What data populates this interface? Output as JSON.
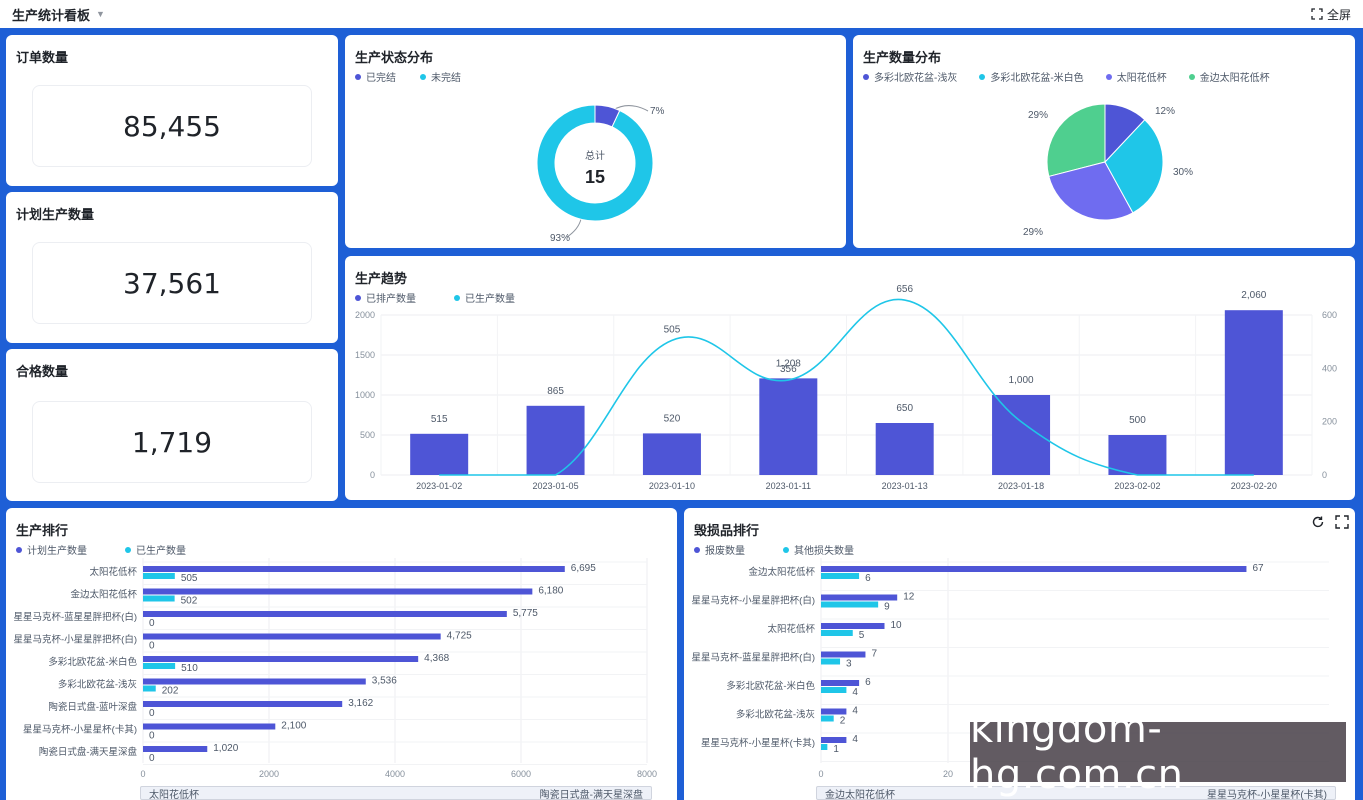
{
  "app": {
    "title": "生产统计看板",
    "fullscreen_label": "全屏"
  },
  "kpis": [
    {
      "title": "订单数量",
      "value": "85,455"
    },
    {
      "title": "计划生产数量",
      "value": "37,561"
    },
    {
      "title": "合格数量",
      "value": "1,719"
    }
  ],
  "status_chart": {
    "title": "生产状态分布",
    "legend": [
      "已完结",
      "未完结"
    ],
    "colors": [
      "#4e55d6",
      "#1fc6e8"
    ],
    "center_label": "总计",
    "center_value": "15",
    "label_done": "7%",
    "label_undone": "93%"
  },
  "qty_chart": {
    "title": "生产数量分布",
    "legend": [
      "多彩北欧花盆-浅灰",
      "多彩北欧花盆-米白色",
      "太阳花低杯",
      "金边太阳花低杯"
    ],
    "colors": [
      "#4e55d6",
      "#1fc6e8",
      "#6f6cf0",
      "#4fcf8f"
    ],
    "labels": [
      "12%",
      "30%",
      "29%",
      "29%"
    ]
  },
  "trend_chart": {
    "title": "生产趋势",
    "legend": [
      "已排产数量",
      "已生产数量"
    ],
    "colors": [
      "#4e55d6",
      "#1fc6e8"
    ],
    "left_ticks": [
      "0",
      "500",
      "1000",
      "1500",
      "2000"
    ],
    "right_ticks": [
      "0",
      "200",
      "400",
      "600"
    ],
    "bar_labels": [
      "515",
      "865",
      "520",
      "1,208",
      "650",
      "1,000",
      "500",
      "2,060"
    ],
    "line_labels": [
      "",
      "",
      "505",
      "356",
      "656",
      "",
      "",
      ""
    ]
  },
  "rank_chart": {
    "title": "生产排行",
    "legend": [
      "计划生产数量",
      "已生产数量"
    ],
    "colors": [
      "#4e55d6",
      "#1fc6e8"
    ],
    "x_ticks": [
      "0",
      "2000",
      "4000",
      "6000",
      "8000"
    ],
    "rows": [
      {
        "label": "太阳花低杯",
        "a": "6,695",
        "b": "505"
      },
      {
        "label": "金边太阳花低杯",
        "a": "6,180",
        "b": "502"
      },
      {
        "label": "星星马克杯-蓝星星胖把杯(白)",
        "a": "5,775",
        "b": "0"
      },
      {
        "label": "星星马克杯-小星星胖把杯(白)",
        "a": "4,725",
        "b": "0"
      },
      {
        "label": "多彩北欧花盆-米白色",
        "a": "4,368",
        "b": "510"
      },
      {
        "label": "多彩北欧花盆-浅灰",
        "a": "3,536",
        "b": "202"
      },
      {
        "label": "陶瓷日式盘-蓝叶深盘",
        "a": "3,162",
        "b": "0"
      },
      {
        "label": "星星马克杯-小星星杯(卡其)",
        "a": "2,100",
        "b": "0"
      },
      {
        "label": "陶瓷日式盘-满天星深盘",
        "a": "1,020",
        "b": "0"
      }
    ],
    "scroll_left": "太阳花低杯",
    "scroll_right": "陶瓷日式盘-满天星深盘"
  },
  "damage_chart": {
    "title": "毁损品排行",
    "legend": [
      "报废数量",
      "其他损失数量"
    ],
    "colors": [
      "#4e55d6",
      "#1fc6e8"
    ],
    "x_ticks": [
      "0",
      "20"
    ],
    "rows": [
      {
        "label": "金边太阳花低杯",
        "a": "67",
        "b": "6"
      },
      {
        "label": "星星马克杯-小星星胖把杯(白)",
        "a": "12",
        "b": "9"
      },
      {
        "label": "太阳花低杯",
        "a": "10",
        "b": "5"
      },
      {
        "label": "星星马克杯-蓝星星胖把杯(白)",
        "a": "7",
        "b": "3"
      },
      {
        "label": "多彩北欧花盆-米白色",
        "a": "6",
        "b": "4"
      },
      {
        "label": "多彩北欧花盆-浅灰",
        "a": "4",
        "b": "2"
      },
      {
        "label": "星星马克杯-小星星杯(卡其)",
        "a": "4",
        "b": "1"
      }
    ],
    "scroll_left": "金边太阳花低杯",
    "scroll_right": "星星马克杯-小星星杯(卡其)"
  },
  "watermark": "kingdom-hg.com.cn",
  "chart_data": [
    {
      "type": "pie",
      "title": "生产状态分布",
      "categories": [
        "已完结",
        "未完结"
      ],
      "values": [
        7,
        93
      ],
      "total": 15
    },
    {
      "type": "pie",
      "title": "生产数量分布",
      "categories": [
        "多彩北欧花盆-浅灰",
        "多彩北欧花盆-米白色",
        "太阳花低杯",
        "金边太阳花低杯"
      ],
      "values": [
        12,
        30,
        29,
        29
      ]
    },
    {
      "type": "bar",
      "title": "生产趋势",
      "categories": [
        "2023-01-02",
        "2023-01-05",
        "2023-01-10",
        "2023-01-11",
        "2023-01-13",
        "2023-01-18",
        "2023-02-02",
        "2023-02-20"
      ],
      "series": [
        {
          "name": "已排产数量",
          "type": "bar",
          "axis": "left",
          "values": [
            515,
            865,
            520,
            1208,
            650,
            1000,
            500,
            2060
          ]
        },
        {
          "name": "已生产数量",
          "type": "line",
          "axis": "right",
          "values": [
            0,
            0,
            505,
            356,
            656,
            200,
            0,
            0
          ]
        }
      ],
      "ylim": [
        0,
        2000
      ],
      "ylim_right": [
        0,
        600
      ]
    },
    {
      "type": "bar",
      "orientation": "horizontal",
      "title": "生产排行",
      "categories": [
        "太阳花低杯",
        "金边太阳花低杯",
        "星星马克杯-蓝星星胖把杯(白)",
        "星星马克杯-小星星胖把杯(白)",
        "多彩北欧花盆-米白色",
        "多彩北欧花盆-浅灰",
        "陶瓷日式盘-蓝叶深盘",
        "星星马克杯-小星星杯(卡其)",
        "陶瓷日式盘-满天星深盘"
      ],
      "series": [
        {
          "name": "计划生产数量",
          "values": [
            6695,
            6180,
            5775,
            4725,
            4368,
            3536,
            3162,
            2100,
            1020
          ]
        },
        {
          "name": "已生产数量",
          "values": [
            505,
            502,
            0,
            0,
            510,
            202,
            0,
            0,
            0
          ]
        }
      ],
      "xlim": [
        0,
        8000
      ]
    },
    {
      "type": "bar",
      "orientation": "horizontal",
      "title": "毁损品排行",
      "categories": [
        "金边太阳花低杯",
        "星星马克杯-小星星胖把杯(白)",
        "太阳花低杯",
        "星星马克杯-蓝星星胖把杯(白)",
        "多彩北欧花盆-米白色",
        "多彩北欧花盆-浅灰",
        "星星马克杯-小星星杯(卡其)"
      ],
      "series": [
        {
          "name": "报废数量",
          "values": [
            67,
            12,
            10,
            7,
            6,
            4,
            4
          ]
        },
        {
          "name": "其他损失数量",
          "values": [
            6,
            9,
            5,
            3,
            4,
            2,
            1
          ]
        }
      ]
    }
  ]
}
